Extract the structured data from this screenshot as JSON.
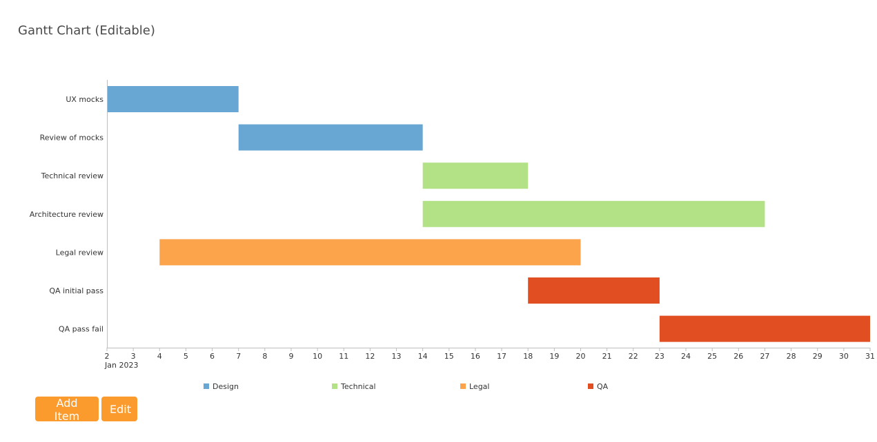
{
  "title": "Gantt Chart (Editable)",
  "buttons": {
    "add_item": "Add Item",
    "edit": "Edit",
    "color": "#fb9a2d"
  },
  "chart_data": {
    "type": "gantt",
    "x_axis": {
      "min": "2023-01-02",
      "max": "2023-01-31",
      "ticks": [
        "2",
        "3",
        "4",
        "5",
        "6",
        "7",
        "8",
        "9",
        "10",
        "11",
        "12",
        "13",
        "14",
        "15",
        "16",
        "17",
        "18",
        "19",
        "20",
        "21",
        "22",
        "23",
        "24",
        "25",
        "26",
        "27",
        "28",
        "29",
        "30",
        "31"
      ],
      "sublabel": "Jan 2023"
    },
    "categories": [
      {
        "name": "Design",
        "color": "#68a7d3"
      },
      {
        "name": "Technical",
        "color": "#b3e186"
      },
      {
        "name": "Legal",
        "color": "#fba44b"
      },
      {
        "name": "QA",
        "color": "#e04e21"
      }
    ],
    "tasks": [
      {
        "name": "UX mocks",
        "start": "2023-01-02",
        "end": "2023-01-07",
        "category": "Design"
      },
      {
        "name": "Review of mocks",
        "start": "2023-01-07",
        "end": "2023-01-14",
        "category": "Design"
      },
      {
        "name": "Technical review",
        "start": "2023-01-14",
        "end": "2023-01-18",
        "category": "Technical"
      },
      {
        "name": "Architecture review",
        "start": "2023-01-14",
        "end": "2023-01-27",
        "category": "Technical"
      },
      {
        "name": "Legal review",
        "start": "2023-01-04",
        "end": "2023-01-20",
        "category": "Legal"
      },
      {
        "name": "QA initial pass",
        "start": "2023-01-18",
        "end": "2023-01-23",
        "category": "QA"
      },
      {
        "name": "QA pass fail",
        "start": "2023-01-23",
        "end": "2023-01-31",
        "category": "QA"
      }
    ]
  }
}
